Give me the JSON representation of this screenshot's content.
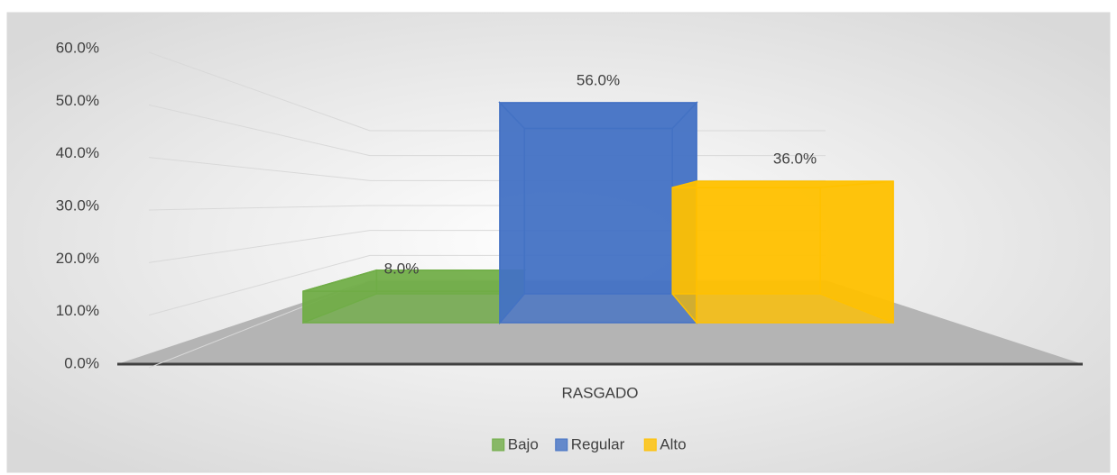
{
  "chart_data": {
    "type": "bar3d",
    "categories": [
      "RASGADO"
    ],
    "series": [
      {
        "name": "Bajo",
        "color": "#70ad47",
        "values": [
          8.0
        ],
        "value_labels": [
          "8.0%"
        ]
      },
      {
        "name": "Regular",
        "color": "#4472c4",
        "values": [
          56.0
        ],
        "value_labels": [
          "56.0%"
        ]
      },
      {
        "name": "Alto",
        "color": "#ffc000",
        "values": [
          36.0
        ],
        "value_labels": [
          "36.0%"
        ]
      }
    ],
    "ylim": [
      0,
      60
    ],
    "yticks": [
      {
        "value": 0,
        "label": "0.0%"
      },
      {
        "value": 10,
        "label": "10.0%"
      },
      {
        "value": 20,
        "label": "20.0%"
      },
      {
        "value": 30,
        "label": "30.0%"
      },
      {
        "value": 40,
        "label": "40.0%"
      },
      {
        "value": 50,
        "label": "50.0%"
      },
      {
        "value": 60,
        "label": "60.0%"
      }
    ],
    "grid": true,
    "legend": "bottom"
  }
}
